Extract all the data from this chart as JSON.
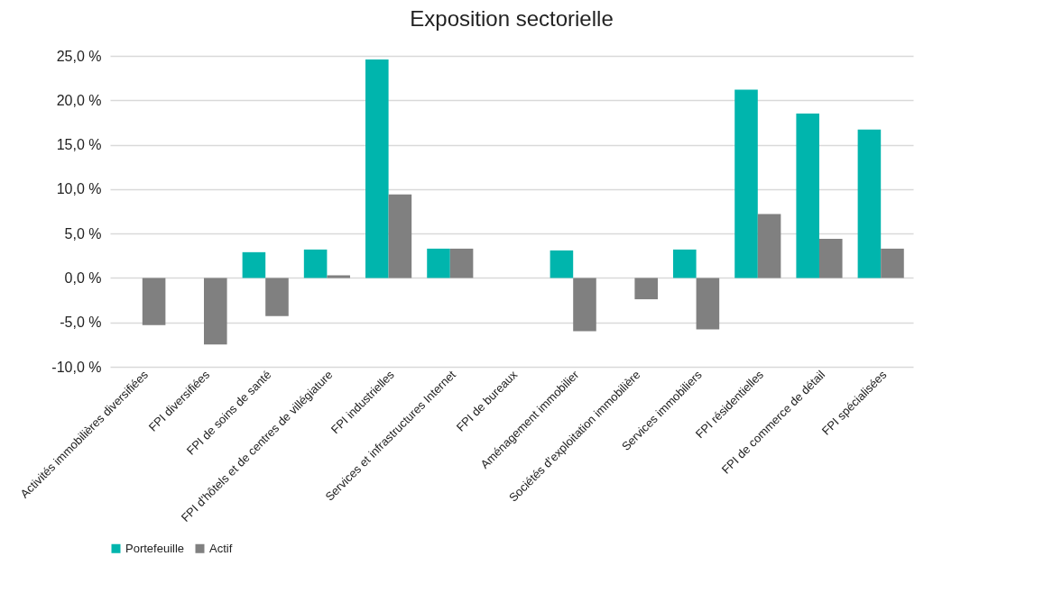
{
  "chart_data": {
    "type": "bar",
    "title": "Exposition sectorielle",
    "categories": [
      "Activités immobilières diversifiées",
      "FPI diversifiées",
      "FPI de soins de santé",
      "FPI d'hôtels et de centres de villégiature",
      "FPI industrielles",
      "Services et infrastructures Internet",
      "FPI de bureaux",
      "Aménagement immobilier",
      "Sociétés d’exploitation immobilière",
      "Services immobiliers",
      "FPI résidentielles",
      "FPI de commerce de détail",
      "FPI spécialisées"
    ],
    "series": [
      {
        "name": "Portefeuille",
        "color": "#00b5ad",
        "values": [
          0,
          0,
          2.9,
          3.2,
          24.6,
          3.3,
          null,
          3.1,
          0,
          3.2,
          21.2,
          18.5,
          16.7
        ]
      },
      {
        "name": "Actif",
        "color": "#808080",
        "values": [
          -5.3,
          -7.5,
          -4.3,
          0.3,
          9.4,
          3.3,
          null,
          -6.0,
          -2.4,
          -5.8,
          7.2,
          4.4,
          3.3
        ]
      }
    ],
    "ylim": [
      -10,
      25
    ],
    "yticks": [
      {
        "value": -10,
        "label": "-10,0 %"
      },
      {
        "value": -5,
        "label": "-5,0 %"
      },
      {
        "value": 0,
        "label": "0,0 %"
      },
      {
        "value": 5,
        "label": "5,0 %"
      },
      {
        "value": 10,
        "label": "10,0 %"
      },
      {
        "value": 15,
        "label": "15,0 %"
      },
      {
        "value": 20,
        "label": "20,0 %"
      },
      {
        "value": 25,
        "label": "25,0 %"
      }
    ],
    "grid": "y",
    "legend": "bottom"
  }
}
